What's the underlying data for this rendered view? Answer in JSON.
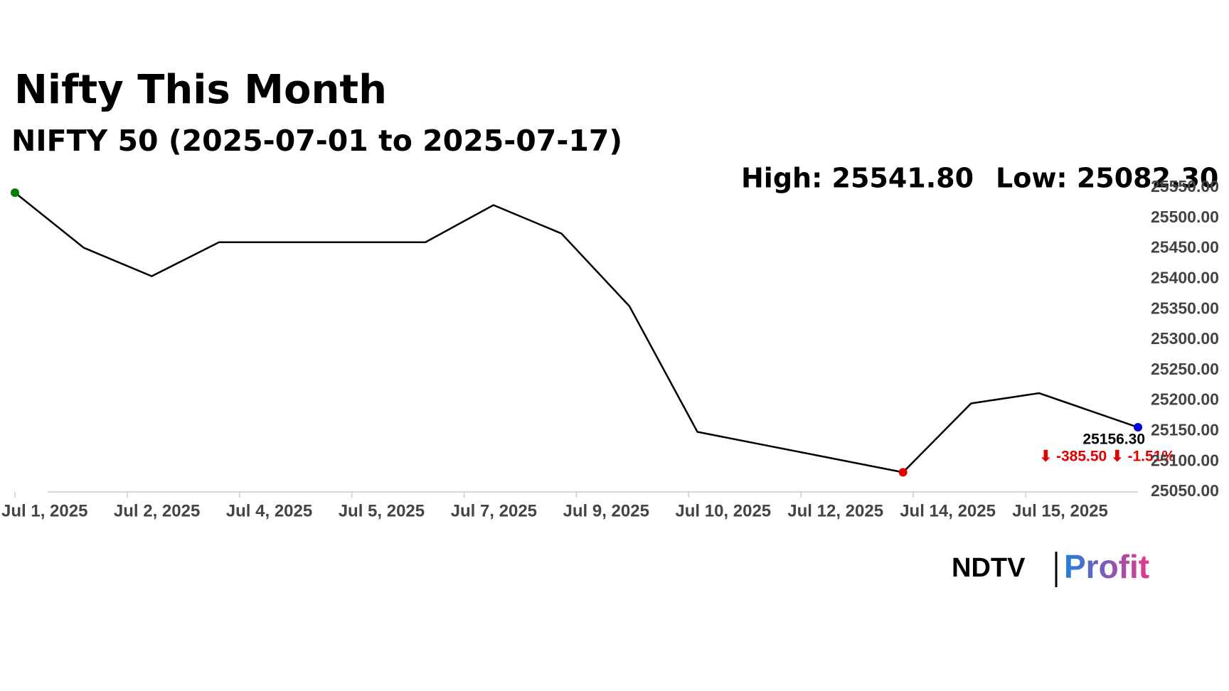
{
  "chart_data": {
    "type": "line",
    "title": "Nifty This Month",
    "subtitle": "NIFTY 50 (2025-07-01 to 2025-07-17)",
    "high_label": "High: 25541.80",
    "low_label": "Low: 25082.30",
    "last_label": "25156.30",
    "change_label": "⬇ -385.50 ⬇ -1.51%",
    "x": [
      0,
      0.613,
      1.218,
      1.817,
      3.655,
      4.261,
      4.866,
      5.472,
      6.077,
      7.908,
      8.514,
      9.12,
      10
    ],
    "series": [
      {
        "color": "#000000",
        "values": [
          25541.8,
          25451.3,
          25404.5,
          25460.4,
          25460.4,
          25521.4,
          25474.7,
          25355.2,
          25148.7,
          25082.3,
          25195.5,
          25212.3,
          25156.3
        ]
      }
    ],
    "markers": [
      {
        "index": 0,
        "color": "#008000"
      },
      {
        "index": 9,
        "color": "#e00000"
      },
      {
        "index": 12,
        "color": "#0000e0"
      }
    ],
    "xlim": [
      0,
      10
    ],
    "xticks": [
      {
        "value": 0,
        "label": "Jul 1, 2025"
      },
      {
        "value": 1,
        "label": "Jul 2, 2025"
      },
      {
        "value": 2,
        "label": "Jul 4, 2025"
      },
      {
        "value": 3,
        "label": "Jul 5, 2025"
      },
      {
        "value": 4,
        "label": "Jul 7, 2025"
      },
      {
        "value": 5,
        "label": "Jul 9, 2025"
      },
      {
        "value": 6,
        "label": "Jul 10, 2025"
      },
      {
        "value": 7,
        "label": "Jul 12, 2025"
      },
      {
        "value": 8,
        "label": "Jul 14, 2025"
      },
      {
        "value": 9,
        "label": "Jul 15, 2025"
      }
    ],
    "ylim": [
      25050,
      25550
    ],
    "yticks": [
      {
        "value": 25050,
        "label": "25050.00"
      },
      {
        "value": 25100,
        "label": "25100.00"
      },
      {
        "value": 25150,
        "label": "25150.00"
      },
      {
        "value": 25200,
        "label": "25200.00"
      },
      {
        "value": 25250,
        "label": "25250.00"
      },
      {
        "value": 25300,
        "label": "25300.00"
      },
      {
        "value": 25350,
        "label": "25350.00"
      },
      {
        "value": 25400,
        "label": "25400.00"
      },
      {
        "value": 25450,
        "label": "25450.00"
      },
      {
        "value": 25500,
        "label": "25500.00"
      },
      {
        "value": 25550,
        "label": "25550.00"
      }
    ]
  },
  "logo": {
    "left": "NDTV",
    "right": "Profit"
  }
}
